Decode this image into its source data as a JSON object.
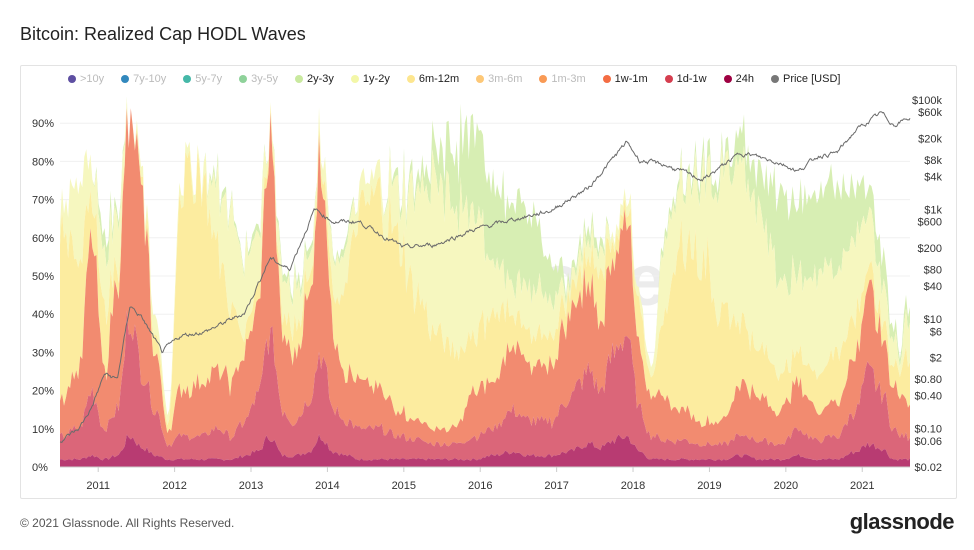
{
  "title": "Bitcoin: Realized Cap HODL Waves",
  "footer": "© 2021 Glassnode. All Rights Reserved.",
  "logo": "glassnode",
  "watermark": "glassnode",
  "legend": [
    {
      "label": ">10y",
      "color": "#5e4fa2",
      "active": false
    },
    {
      "label": "7y-10y",
      "color": "#3288bd",
      "active": false
    },
    {
      "label": "5y-7y",
      "color": "#45b8a8",
      "active": false
    },
    {
      "label": "3y-5y",
      "color": "#8fd29a",
      "active": false
    },
    {
      "label": "2y-3y",
      "color": "#c9e99f",
      "active": true
    },
    {
      "label": "1y-2y",
      "color": "#f3f7a8",
      "active": true
    },
    {
      "label": "6m-12m",
      "color": "#fde68f",
      "active": true
    },
    {
      "label": "3m-6m",
      "color": "#fdc877",
      "active": false
    },
    {
      "label": "1m-3m",
      "color": "#f99a55",
      "active": false
    },
    {
      "label": "1w-1m",
      "color": "#f46d43",
      "active": true
    },
    {
      "label": "1d-1w",
      "color": "#d53e4f",
      "active": true
    },
    {
      "label": "24h",
      "color": "#9e0142",
      "active": true
    },
    {
      "label": "Price [USD]",
      "color": "#777777",
      "active": true
    }
  ],
  "chart_data": {
    "type": "area",
    "stacked": true,
    "title": "Bitcoin: Realized Cap HODL Waves",
    "xlabel": "",
    "ylabel": "",
    "x_ticks": [
      "2011",
      "2012",
      "2013",
      "2014",
      "2015",
      "2016",
      "2017",
      "2018",
      "2019",
      "2020",
      "2021"
    ],
    "y_ticks": [
      "0%",
      "10%",
      "20%",
      "30%",
      "40%",
      "50%",
      "60%",
      "70%",
      "80%",
      "90%"
    ],
    "ylim": [
      0,
      90
    ],
    "xlim": [
      "2010-07",
      "2021-08"
    ],
    "y2_scale": "log",
    "y2_ticks": [
      "$0.02",
      "$0.06",
      "$0.10",
      "$0.40",
      "$0.80",
      "$2",
      "$6",
      "$10",
      "$40",
      "$80",
      "$200",
      "$600",
      "$1k",
      "$4k",
      "$8k",
      "$20k",
      "$60k",
      "$100k"
    ],
    "y2lim": [
      0.02,
      100000
    ],
    "grid": true,
    "legend_position": "top",
    "dates": [
      "2010-07",
      "2010-10",
      "2010-12",
      "2011-02",
      "2011-04",
      "2011-06",
      "2011-08",
      "2011-10",
      "2011-12",
      "2012-02",
      "2012-05",
      "2012-08",
      "2012-10",
      "2012-12",
      "2013-02",
      "2013-04",
      "2013-06",
      "2013-08",
      "2013-10",
      "2013-12",
      "2014-02",
      "2014-04",
      "2014-06",
      "2014-09",
      "2014-12",
      "2015-03",
      "2015-06",
      "2015-09",
      "2015-12",
      "2016-03",
      "2016-06",
      "2016-09",
      "2016-12",
      "2017-03",
      "2017-06",
      "2017-08",
      "2017-10",
      "2017-12",
      "2018-02",
      "2018-04",
      "2018-06",
      "2018-09",
      "2018-12",
      "2019-03",
      "2019-06",
      "2019-09",
      "2019-12",
      "2020-03",
      "2020-06",
      "2020-09",
      "2020-12",
      "2021-02",
      "2021-04",
      "2021-06",
      "2021-07",
      "2021-08"
    ],
    "series": [
      {
        "name": "24h",
        "color": "#b83b72",
        "values": [
          2,
          2,
          3,
          2,
          3,
          8,
          5,
          3,
          2,
          2,
          2,
          2,
          2,
          3,
          4,
          8,
          3,
          3,
          4,
          8,
          4,
          3,
          2,
          2,
          2,
          2,
          2,
          2,
          2,
          3,
          4,
          3,
          3,
          4,
          6,
          5,
          7,
          8,
          4,
          2,
          2,
          2,
          2,
          2,
          3,
          2,
          2,
          3,
          2,
          2,
          4,
          6,
          5,
          2,
          2,
          2
        ]
      },
      {
        "name": "1d-1w",
        "color": "#db6679",
        "values": [
          6,
          8,
          17,
          8,
          12,
          32,
          20,
          12,
          4,
          6,
          6,
          8,
          6,
          9,
          14,
          27,
          12,
          9,
          14,
          22,
          11,
          9,
          8,
          8,
          6,
          5,
          4,
          4,
          6,
          7,
          11,
          9,
          9,
          14,
          19,
          15,
          23,
          27,
          11,
          6,
          5,
          5,
          4,
          4,
          5,
          5,
          4,
          7,
          5,
          6,
          11,
          19,
          15,
          8,
          6,
          6
        ]
      },
      {
        "name": "1w-1m",
        "color": "#f28b70",
        "values": [
          10,
          15,
          40,
          15,
          35,
          52,
          45,
          15,
          4,
          12,
          14,
          15,
          14,
          18,
          22,
          51,
          20,
          18,
          27,
          52,
          20,
          13,
          12,
          10,
          7,
          5,
          4,
          4,
          12,
          12,
          18,
          13,
          15,
          22,
          23,
          20,
          25,
          32,
          15,
          12,
          10,
          8,
          6,
          6,
          14,
          11,
          9,
          12,
          8,
          9,
          15,
          20,
          15,
          12,
          10,
          10
        ]
      },
      {
        "name": "6m-12m",
        "color": "#fcec9f",
        "values": [
          42,
          30,
          10,
          15,
          5,
          0,
          2,
          5,
          2,
          55,
          56,
          30,
          18,
          5,
          5,
          2,
          5,
          8,
          5,
          3,
          10,
          25,
          43,
          50,
          45,
          33,
          25,
          20,
          15,
          18,
          9,
          8,
          8,
          5,
          7,
          12,
          5,
          3,
          10,
          5,
          23,
          45,
          43,
          28,
          16,
          12,
          10,
          8,
          10,
          13,
          10,
          5,
          5,
          6,
          7,
          12
        ]
      },
      {
        "name": "1y-2y",
        "color": "#f6f7bf",
        "values": [
          5,
          20,
          8,
          15,
          13,
          0,
          3,
          5,
          3,
          3,
          2,
          17,
          25,
          20,
          15,
          1,
          10,
          10,
          5,
          4,
          10,
          10,
          5,
          5,
          12,
          27,
          40,
          40,
          30,
          15,
          8,
          12,
          10,
          3,
          5,
          6,
          2,
          3,
          3,
          3,
          20,
          15,
          23,
          35,
          40,
          35,
          25,
          20,
          27,
          22,
          20,
          15,
          10,
          7,
          3,
          10
        ]
      },
      {
        "name": "2y-3y",
        "color": "#d7eeb3",
        "values": [
          0,
          0,
          0,
          5,
          2,
          0,
          0,
          0,
          0,
          0,
          0,
          2,
          1,
          1,
          2,
          0,
          2,
          2,
          2,
          0,
          1,
          2,
          0,
          0,
          2,
          3,
          7,
          15,
          23,
          20,
          20,
          20,
          10,
          2,
          3,
          2,
          0,
          0,
          0,
          0,
          2,
          2,
          4,
          3,
          7,
          10,
          22,
          20,
          21,
          23,
          13,
          7,
          8,
          3,
          2,
          4
        ]
      }
    ],
    "price": {
      "name": "Price [USD]",
      "color": "#6b6b6b",
      "dates": [
        "2010-07",
        "2010-10",
        "2010-12",
        "2011-02",
        "2011-04",
        "2011-06",
        "2011-08",
        "2011-11",
        "2012-02",
        "2012-06",
        "2012-12",
        "2013-04",
        "2013-07",
        "2013-11",
        "2014-02",
        "2014-06",
        "2015-01",
        "2015-06",
        "2015-12",
        "2016-06",
        "2016-12",
        "2017-06",
        "2017-12",
        "2018-02",
        "2018-06",
        "2018-12",
        "2019-06",
        "2019-12",
        "2020-03",
        "2020-06",
        "2020-09",
        "2020-12",
        "2021-04",
        "2021-06",
        "2021-08"
      ],
      "values": [
        0.06,
        0.1,
        0.25,
        1,
        0.8,
        18,
        10,
        2.5,
        5,
        6,
        13,
        130,
        80,
        1000,
        600,
        600,
        200,
        230,
        430,
        650,
        950,
        2500,
        17000,
        8000,
        6500,
        3500,
        11000,
        7200,
        5000,
        9500,
        10800,
        28000,
        58000,
        35000,
        46000
      ]
    }
  }
}
